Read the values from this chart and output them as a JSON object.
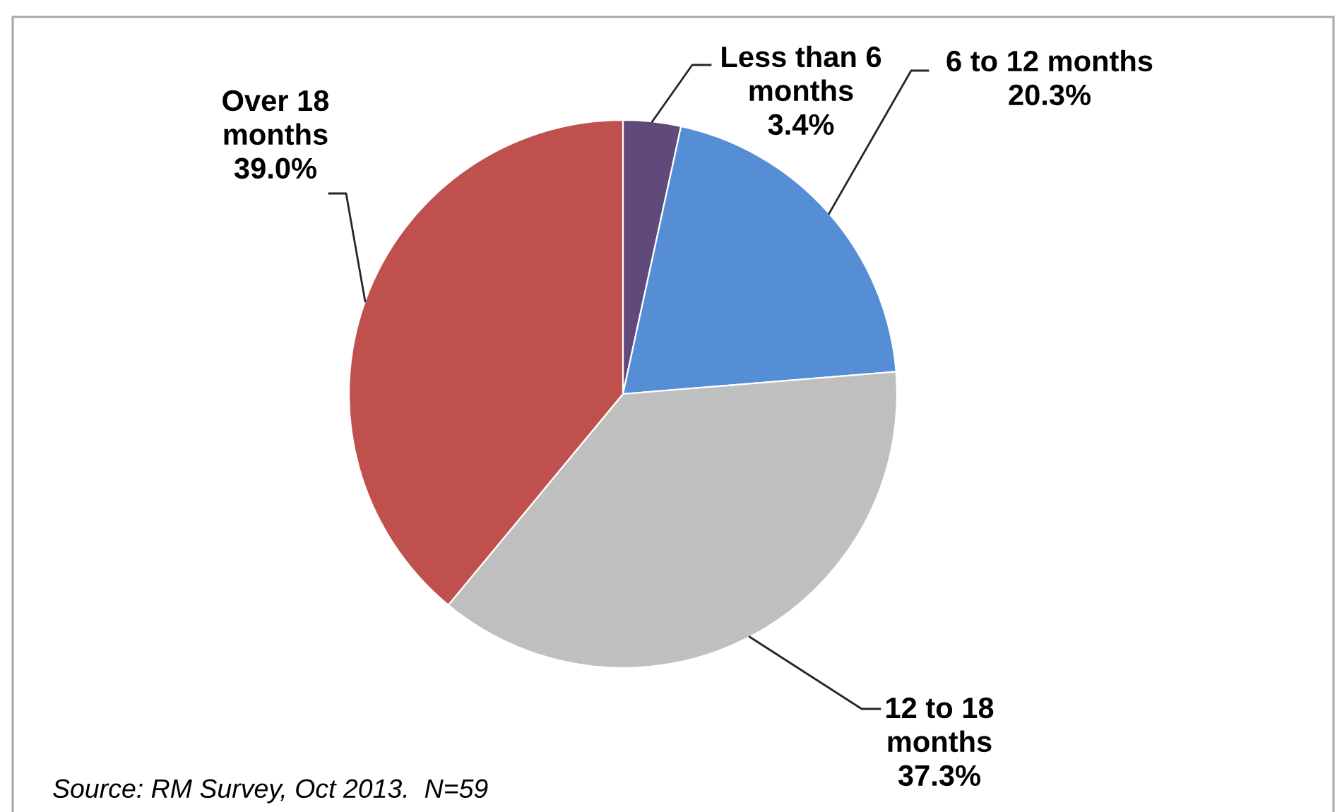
{
  "chart_data": {
    "type": "pie",
    "categories": [
      "Less than 6\nmonths",
      "6 to 12 months",
      "12 to 18\nmonths",
      "Over 18\nmonths"
    ],
    "values": [
      3.4,
      20.3,
      37.3,
      39.0
    ],
    "colors": [
      "#604a7b",
      "#558ed5",
      "#bfbfbf",
      "#c0504d"
    ],
    "value_labels": [
      "3.4%",
      "20.3%",
      "37.3%",
      "39.0%"
    ],
    "annotations": [
      "Source: RM Survey, Oct 2013.  N=59"
    ]
  }
}
